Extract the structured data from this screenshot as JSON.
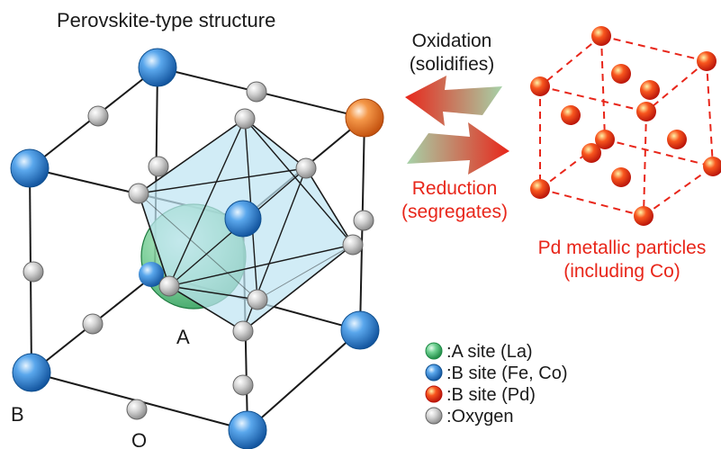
{
  "title": "Perovskite-type structure",
  "lattice_labels": {
    "a": "A",
    "b": "B",
    "o": "O"
  },
  "process": {
    "oxidation": "Oxidation",
    "oxidation_note": "(solidifies)",
    "reduction": "Reduction",
    "reduction_note": "(segregates)"
  },
  "particles": {
    "title": "Pd metallic particles",
    "note": "(including Co)"
  },
  "legend": [
    {
      "key": "a-site",
      "label": ":A site (La)",
      "color": "#3fbf6a"
    },
    {
      "key": "b-site-fe-co",
      "label": ":B site (Fe, Co)",
      "color": "#2f86d8"
    },
    {
      "key": "b-site-pd",
      "label": ":B site (Pd)",
      "color": "#ee2a10"
    },
    {
      "key": "oxygen",
      "label": ":Oxygen",
      "color": "#c4c4c4"
    }
  ],
  "colors": {
    "a_site": "#3fbf6a",
    "b_site": "#2f86d8",
    "b_site_orange": "#ef7a2a",
    "pd": "#ee2a10",
    "oxygen": "#c4c4c4",
    "octahedron": "#bfe4f2",
    "reduction_text": "#e8261a"
  }
}
